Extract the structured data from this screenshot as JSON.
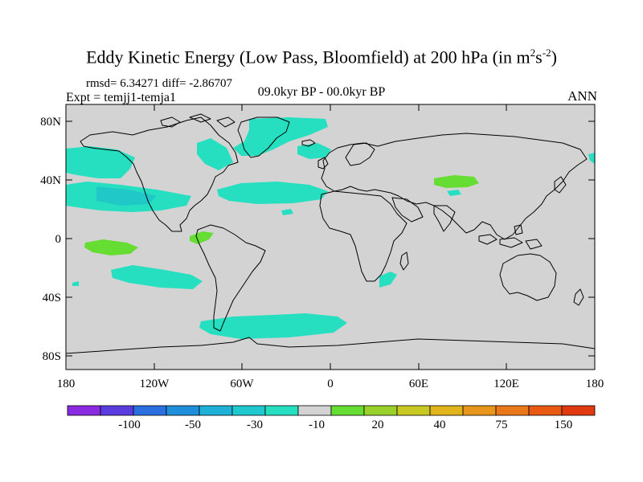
{
  "title": "Eddy Kinetic Energy (Low Pass, Bloomfield) at 200 hPa (in m",
  "title_sup1": "2",
  "title_mid": "s",
  "title_sup2": "-2",
  "title_end": ")",
  "stats": "rmsd= 6.34271 diff= -2.86707",
  "expt": "Expt = temjj1-temja1",
  "period": "09.0kyr BP - 00.0kyr BP",
  "season": "ANN",
  "map": {
    "land_color": "#d3d3d3",
    "positive_color": "#66dd33",
    "negative_color": "#26dfc0",
    "lat_ticks": [
      "80N",
      "40N",
      "0",
      "40S",
      "80S"
    ],
    "lon_ticks": [
      "180",
      "120W",
      "60W",
      "0",
      "60E",
      "120E",
      "180"
    ]
  },
  "colorbar": {
    "colors": [
      "#8a2be2",
      "#5b3ddf",
      "#2b6fe0",
      "#1f8fdb",
      "#1fb0d8",
      "#1fc8cf",
      "#26dfc0",
      "#d3d3d3",
      "#66dd33",
      "#99d02a",
      "#c8c822",
      "#e0b41a",
      "#e6961a",
      "#e87818",
      "#e85a14",
      "#e03a10"
    ],
    "labels": [
      "-100",
      "-50",
      "-30",
      "-10",
      "20",
      "40",
      "75",
      "150"
    ]
  }
}
